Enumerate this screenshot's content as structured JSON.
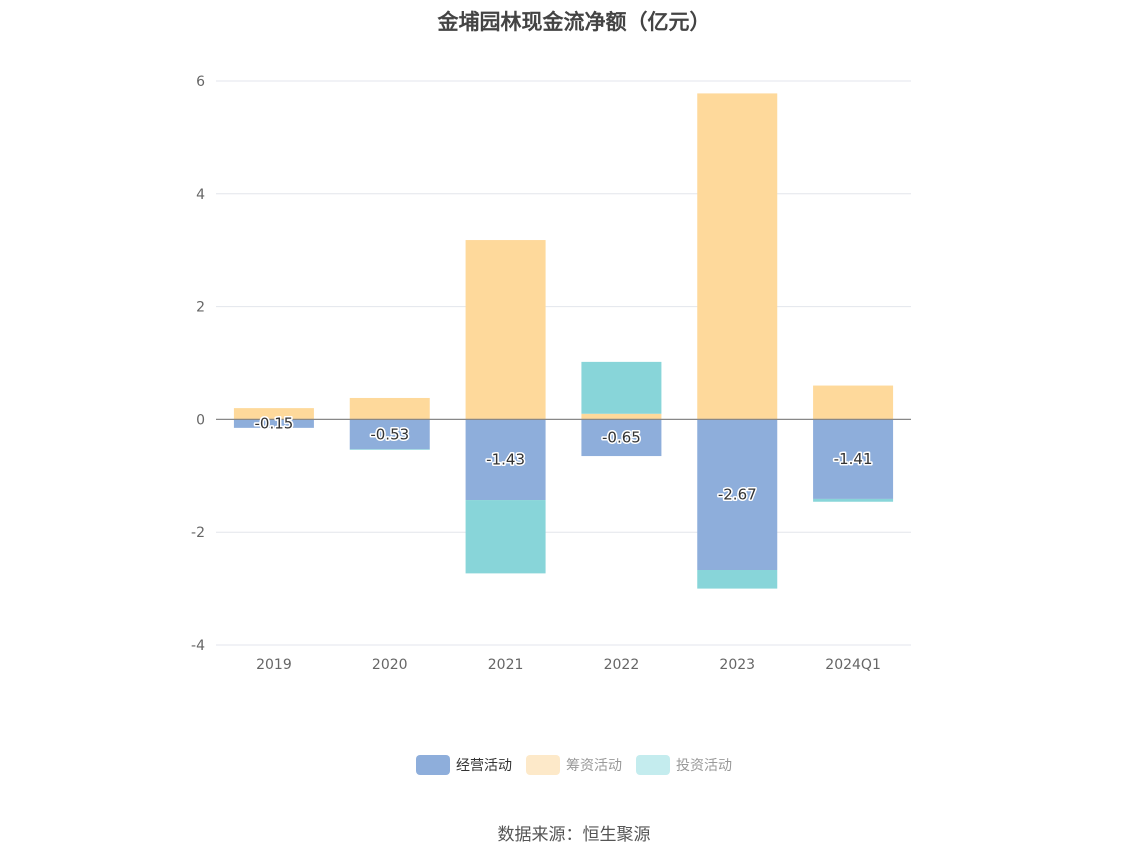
{
  "chart_data": {
    "type": "bar",
    "stacked": true,
    "title": "金埔园林现金流净额（亿元）",
    "categories": [
      "2019",
      "2020",
      "2021",
      "2022",
      "2023",
      "2024Q1"
    ],
    "ylim": [
      -4,
      6
    ],
    "yticks": [
      -4,
      -2,
      0,
      2,
      4,
      6
    ],
    "grid": true,
    "legend_position": "bottom",
    "series": [
      {
        "name": "经营活动",
        "color": "#8eaedb",
        "text_color": "#333333",
        "values": [
          -0.15,
          -0.53,
          -1.43,
          -0.65,
          -2.67,
          -1.41
        ],
        "show_labels": true
      },
      {
        "name": "筹资活动",
        "color": "#fed99b",
        "swatch": "#fde9c9",
        "text_color": "#999999",
        "values": [
          0.2,
          0.38,
          3.18,
          0.1,
          5.78,
          0.6
        ],
        "show_labels": false
      },
      {
        "name": "投资活动",
        "color": "#88d5d9",
        "swatch": "#c4ecee",
        "text_color": "#999999",
        "values": [
          0.0,
          -0.01,
          -1.3,
          0.92,
          -0.33,
          -0.05
        ],
        "show_labels": false
      }
    ]
  },
  "source": "数据来源：恒生聚源"
}
